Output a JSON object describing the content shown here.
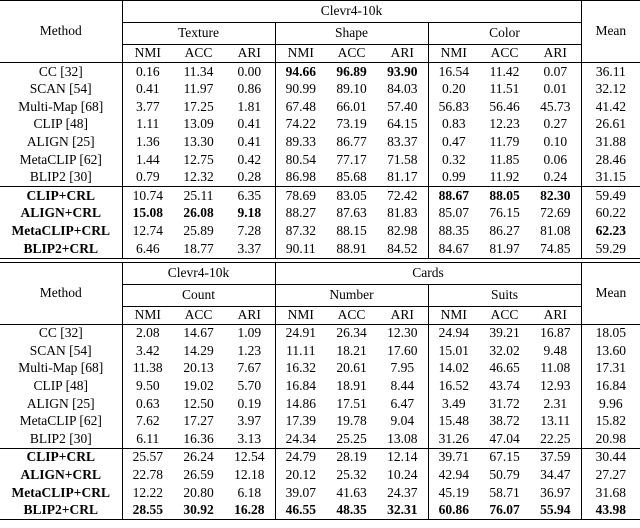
{
  "page": {
    "background": "#ffffff",
    "text_color": "#000000",
    "rule_color": "#000000"
  },
  "tables": [
    {
      "method_header": "Method",
      "mean_header": "Mean",
      "metrics": [
        "NMI",
        "ACC",
        "ARI"
      ],
      "top_groups": [
        {
          "label": "Clevr4-10k",
          "span": 9
        }
      ],
      "sub_groups": [
        "Texture",
        "Shape",
        "Color"
      ],
      "body": [
        {
          "rows": [
            {
              "method": "CC [32]",
              "bmethod": 0,
              "v": [
                "0.16",
                "11.34",
                "0.00",
                "94.66",
                "96.89",
                "93.90",
                "16.54",
                "11.42",
                "0.07"
              ],
              "b": [
                0,
                0,
                0,
                1,
                1,
                1,
                0,
                0,
                0
              ],
              "mean": "36.11",
              "bm": 0
            },
            {
              "method": "SCAN [54]",
              "bmethod": 0,
              "v": [
                "0.41",
                "11.97",
                "0.86",
                "90.99",
                "89.10",
                "84.03",
                "0.20",
                "11.51",
                "0.01"
              ],
              "b": [
                0,
                0,
                0,
                0,
                0,
                0,
                0,
                0,
                0
              ],
              "mean": "32.12",
              "bm": 0
            },
            {
              "method": "Multi-Map [68]",
              "bmethod": 0,
              "v": [
                "3.77",
                "17.25",
                "1.81",
                "67.48",
                "66.01",
                "57.40",
                "56.83",
                "56.46",
                "45.73"
              ],
              "b": [
                0,
                0,
                0,
                0,
                0,
                0,
                0,
                0,
                0
              ],
              "mean": "41.42",
              "bm": 0
            },
            {
              "method": "CLIP [48]",
              "bmethod": 0,
              "v": [
                "1.11",
                "13.09",
                "0.41",
                "74.22",
                "73.19",
                "64.15",
                "0.83",
                "12.23",
                "0.27"
              ],
              "b": [
                0,
                0,
                0,
                0,
                0,
                0,
                0,
                0,
                0
              ],
              "mean": "26.61",
              "bm": 0
            },
            {
              "method": "ALIGN [25]",
              "bmethod": 0,
              "v": [
                "1.36",
                "13.30",
                "0.41",
                "89.33",
                "86.77",
                "83.37",
                "0.47",
                "11.79",
                "0.10"
              ],
              "b": [
                0,
                0,
                0,
                0,
                0,
                0,
                0,
                0,
                0
              ],
              "mean": "31.88",
              "bm": 0
            },
            {
              "method": "MetaCLIP [62]",
              "bmethod": 0,
              "v": [
                "1.44",
                "12.75",
                "0.42",
                "80.54",
                "77.17",
                "71.58",
                "0.32",
                "11.85",
                "0.06"
              ],
              "b": [
                0,
                0,
                0,
                0,
                0,
                0,
                0,
                0,
                0
              ],
              "mean": "28.46",
              "bm": 0
            },
            {
              "method": "BLIP2 [30]",
              "bmethod": 0,
              "v": [
                "0.79",
                "12.32",
                "0.28",
                "86.98",
                "85.68",
                "81.17",
                "0.99",
                "11.92",
                "0.24"
              ],
              "b": [
                0,
                0,
                0,
                0,
                0,
                0,
                0,
                0,
                0
              ],
              "mean": "31.15",
              "bm": 0
            }
          ]
        },
        {
          "rows": [
            {
              "method": "CLIP+CRL",
              "bmethod": 1,
              "v": [
                "10.74",
                "25.11",
                "6.35",
                "78.69",
                "83.05",
                "72.42",
                "88.67",
                "88.05",
                "82.30"
              ],
              "b": [
                0,
                0,
                0,
                0,
                0,
                0,
                1,
                1,
                1
              ],
              "mean": "59.49",
              "bm": 0
            },
            {
              "method": "ALIGN+CRL",
              "bmethod": 1,
              "v": [
                "15.08",
                "26.08",
                "9.18",
                "88.27",
                "87.63",
                "81.83",
                "85.07",
                "76.15",
                "72.69"
              ],
              "b": [
                1,
                1,
                1,
                0,
                0,
                0,
                0,
                0,
                0
              ],
              "mean": "60.22",
              "bm": 0
            },
            {
              "method": "MetaCLIP+CRL",
              "bmethod": 1,
              "v": [
                "12.74",
                "25.89",
                "7.28",
                "87.32",
                "88.15",
                "82.98",
                "88.35",
                "86.27",
                "81.08"
              ],
              "b": [
                0,
                0,
                0,
                0,
                0,
                0,
                0,
                0,
                0
              ],
              "mean": "62.23",
              "bm": 1
            },
            {
              "method": "BLIP2+CRL",
              "bmethod": 1,
              "v": [
                "6.46",
                "18.77",
                "3.37",
                "90.11",
                "88.91",
                "84.52",
                "84.67",
                "81.97",
                "74.85"
              ],
              "b": [
                0,
                0,
                0,
                0,
                0,
                0,
                0,
                0,
                0
              ],
              "mean": "59.29",
              "bm": 0
            }
          ]
        }
      ]
    },
    {
      "method_header": "Method",
      "mean_header": "Mean",
      "metrics": [
        "NMI",
        "ACC",
        "ARI"
      ],
      "top_groups": [
        {
          "label": "Clevr4-10k",
          "span": 3
        },
        {
          "label": "Cards",
          "span": 6
        }
      ],
      "sub_groups": [
        "Count",
        "Number",
        "Suits"
      ],
      "body": [
        {
          "rows": [
            {
              "method": "CC [32]",
              "bmethod": 0,
              "v": [
                "2.08",
                "14.67",
                "1.09",
                "24.91",
                "26.34",
                "12.30",
                "24.94",
                "39.21",
                "16.87"
              ],
              "b": [
                0,
                0,
                0,
                0,
                0,
                0,
                0,
                0,
                0
              ],
              "mean": "18.05",
              "bm": 0
            },
            {
              "method": "SCAN [54]",
              "bmethod": 0,
              "v": [
                "3.42",
                "14.29",
                "1.23",
                "11.11",
                "18.21",
                "17.60",
                "15.01",
                "32.02",
                "9.48"
              ],
              "b": [
                0,
                0,
                0,
                0,
                0,
                0,
                0,
                0,
                0
              ],
              "mean": "13.60",
              "bm": 0
            },
            {
              "method": "Multi-Map [68]",
              "bmethod": 0,
              "v": [
                "11.38",
                "20.13",
                "7.67",
                "16.32",
                "20.61",
                "7.95",
                "14.02",
                "46.65",
                "11.08"
              ],
              "b": [
                0,
                0,
                0,
                0,
                0,
                0,
                0,
                0,
                0
              ],
              "mean": "17.31",
              "bm": 0
            },
            {
              "method": "CLIP [48]",
              "bmethod": 0,
              "v": [
                "9.50",
                "19.02",
                "5.70",
                "16.84",
                "18.91",
                "8.44",
                "16.52",
                "43.74",
                "12.93"
              ],
              "b": [
                0,
                0,
                0,
                0,
                0,
                0,
                0,
                0,
                0
              ],
              "mean": "16.84",
              "bm": 0
            },
            {
              "method": "ALIGN [25]",
              "bmethod": 0,
              "v": [
                "0.63",
                "12.50",
                "0.19",
                "14.86",
                "17.51",
                "6.47",
                "3.49",
                "31.72",
                "2.31"
              ],
              "b": [
                0,
                0,
                0,
                0,
                0,
                0,
                0,
                0,
                0
              ],
              "mean": "9.96",
              "bm": 0
            },
            {
              "method": "MetaCLIP [62]",
              "bmethod": 0,
              "v": [
                "7.62",
                "17.27",
                "3.97",
                "17.39",
                "19.78",
                "9.04",
                "15.48",
                "38.72",
                "13.11"
              ],
              "b": [
                0,
                0,
                0,
                0,
                0,
                0,
                0,
                0,
                0
              ],
              "mean": "15.82",
              "bm": 0
            },
            {
              "method": "BLIP2 [30]",
              "bmethod": 0,
              "v": [
                "6.11",
                "16.36",
                "3.13",
                "24.34",
                "25.25",
                "13.08",
                "31.26",
                "47.04",
                "22.25"
              ],
              "b": [
                0,
                0,
                0,
                0,
                0,
                0,
                0,
                0,
                0
              ],
              "mean": "20.98",
              "bm": 0
            }
          ]
        },
        {
          "rows": [
            {
              "method": "CLIP+CRL",
              "bmethod": 1,
              "v": [
                "25.57",
                "26.24",
                "12.54",
                "24.79",
                "28.19",
                "12.14",
                "39.71",
                "67.15",
                "37.59"
              ],
              "b": [
                0,
                0,
                0,
                0,
                0,
                0,
                0,
                0,
                0
              ],
              "mean": "30.44",
              "bm": 0
            },
            {
              "method": "ALIGN+CRL",
              "bmethod": 1,
              "v": [
                "22.78",
                "26.59",
                "12.18",
                "20.12",
                "25.32",
                "10.24",
                "42.94",
                "50.79",
                "34.47"
              ],
              "b": [
                0,
                0,
                0,
                0,
                0,
                0,
                0,
                0,
                0
              ],
              "mean": "27.27",
              "bm": 0
            },
            {
              "method": "MetaCLIP+CRL",
              "bmethod": 1,
              "v": [
                "12.22",
                "20.80",
                "6.18",
                "39.07",
                "41.63",
                "24.37",
                "45.19",
                "58.71",
                "36.97"
              ],
              "b": [
                0,
                0,
                0,
                0,
                0,
                0,
                0,
                0,
                0
              ],
              "mean": "31.68",
              "bm": 0
            },
            {
              "method": "BLIP2+CRL",
              "bmethod": 1,
              "v": [
                "28.55",
                "30.92",
                "16.28",
                "46.55",
                "48.35",
                "32.31",
                "60.86",
                "76.07",
                "55.94"
              ],
              "b": [
                1,
                1,
                1,
                1,
                1,
                1,
                1,
                1,
                1
              ],
              "mean": "43.98",
              "bm": 1
            }
          ]
        }
      ]
    }
  ]
}
